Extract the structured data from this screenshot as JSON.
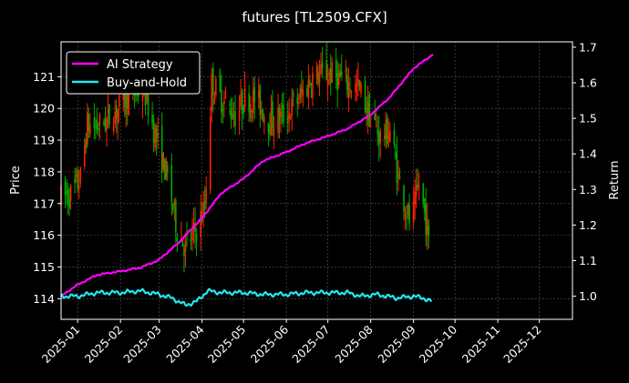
{
  "chart_data": {
    "type": "line",
    "title": "futures [TL2509.CFX]",
    "left_axis_label": "Price",
    "right_axis_label": "Return",
    "x_ticks": [
      "2025-01",
      "2025-02",
      "2025-03",
      "2025-04",
      "2025-05",
      "2025-06",
      "2025-07",
      "2025-08",
      "2025-09",
      "2025-10",
      "2025-11",
      "2025-12"
    ],
    "x_range": [
      "2024-12-20",
      "2025-12-25"
    ],
    "left_ylim": [
      113.35,
      122.1
    ],
    "right_ylim": [
      0.935,
      1.715
    ],
    "left_ticks": [
      114,
      115,
      116,
      117,
      118,
      119,
      120,
      121
    ],
    "right_ticks": [
      "1.0",
      "1.1",
      "1.2",
      "1.3",
      "1.4",
      "1.5",
      "1.6",
      "1.7"
    ],
    "grid": true,
    "legend_position": "top-left",
    "candle_colors": {
      "up": "#ff2200",
      "down": "#00aa00"
    },
    "price_anchors": [
      [
        "2024-12-20",
        117.2
      ],
      [
        "2024-12-28",
        117.3
      ],
      [
        "2025-01-03",
        117.8
      ],
      [
        "2025-01-08",
        119.5
      ],
      [
        "2025-01-14",
        119.4
      ],
      [
        "2025-01-22",
        119.6
      ],
      [
        "2025-02-01",
        120.1
      ],
      [
        "2025-02-06",
        120.4
      ],
      [
        "2025-02-18",
        120.6
      ],
      [
        "2025-02-27",
        119.0
      ],
      [
        "2025-03-07",
        117.8
      ],
      [
        "2025-03-14",
        116.2
      ],
      [
        "2025-03-20",
        115.6
      ],
      [
        "2025-03-28",
        116.2
      ],
      [
        "2025-04-03",
        116.9
      ],
      [
        "2025-04-08",
        120.8
      ],
      [
        "2025-04-15",
        120.3
      ],
      [
        "2025-04-25",
        119.8
      ],
      [
        "2025-05-02",
        120.3
      ],
      [
        "2025-05-10",
        120.3
      ],
      [
        "2025-05-20",
        119.6
      ],
      [
        "2025-06-01",
        119.8
      ],
      [
        "2025-06-10",
        120.3
      ],
      [
        "2025-06-20",
        121.0
      ],
      [
        "2025-07-01",
        121.1
      ],
      [
        "2025-07-07",
        121.0
      ],
      [
        "2025-07-15",
        120.8
      ],
      [
        "2025-07-24",
        120.6
      ],
      [
        "2025-08-01",
        119.7
      ],
      [
        "2025-08-08",
        119.1
      ],
      [
        "2025-08-15",
        119.3
      ],
      [
        "2025-08-22",
        117.6
      ],
      [
        "2025-08-30",
        116.3
      ],
      [
        "2025-09-05",
        117.6
      ],
      [
        "2025-09-09",
        116.7
      ],
      [
        "2025-09-11",
        116.2
      ],
      [
        "2025-09-13",
        115.3
      ],
      [
        "2025-09-14",
        115.1
      ]
    ],
    "series": [
      {
        "name": "AI Strategy",
        "color": "#ff00ff",
        "points": [
          [
            "2024-12-20",
            1.0
          ],
          [
            "2024-12-31",
            1.03
          ],
          [
            "2025-01-15",
            1.06
          ],
          [
            "2025-02-01",
            1.07
          ],
          [
            "2025-02-15",
            1.08
          ],
          [
            "2025-02-28",
            1.1
          ],
          [
            "2025-03-15",
            1.15
          ],
          [
            "2025-04-01",
            1.22
          ],
          [
            "2025-04-15",
            1.29
          ],
          [
            "2025-05-01",
            1.33
          ],
          [
            "2025-05-15",
            1.38
          ],
          [
            "2025-06-01",
            1.405
          ],
          [
            "2025-06-15",
            1.43
          ],
          [
            "2025-07-01",
            1.45
          ],
          [
            "2025-07-15",
            1.47
          ],
          [
            "2025-08-01",
            1.51
          ],
          [
            "2025-08-15",
            1.56
          ],
          [
            "2025-09-01",
            1.64
          ],
          [
            "2025-09-15",
            1.68
          ]
        ]
      },
      {
        "name": "Buy-and-Hold",
        "color": "#22e8ee",
        "points": [
          [
            "2024-12-20",
            1.0
          ],
          [
            "2025-01-01",
            1.0
          ],
          [
            "2025-01-15",
            1.01
          ],
          [
            "2025-02-01",
            1.01
          ],
          [
            "2025-02-15",
            1.015
          ],
          [
            "2025-03-01",
            1.005
          ],
          [
            "2025-03-10",
            0.995
          ],
          [
            "2025-03-20",
            0.975
          ],
          [
            "2025-03-28",
            0.985
          ],
          [
            "2025-04-05",
            1.015
          ],
          [
            "2025-04-15",
            1.01
          ],
          [
            "2025-05-01",
            1.01
          ],
          [
            "2025-05-15",
            1.005
          ],
          [
            "2025-06-01",
            1.005
          ],
          [
            "2025-06-15",
            1.01
          ],
          [
            "2025-07-01",
            1.01
          ],
          [
            "2025-07-15",
            1.01
          ],
          [
            "2025-07-25",
            1.0
          ],
          [
            "2025-08-05",
            1.005
          ],
          [
            "2025-08-20",
            0.995
          ],
          [
            "2025-09-01",
            1.0
          ],
          [
            "2025-09-08",
            0.995
          ],
          [
            "2025-09-14",
            0.985
          ]
        ]
      }
    ]
  }
}
